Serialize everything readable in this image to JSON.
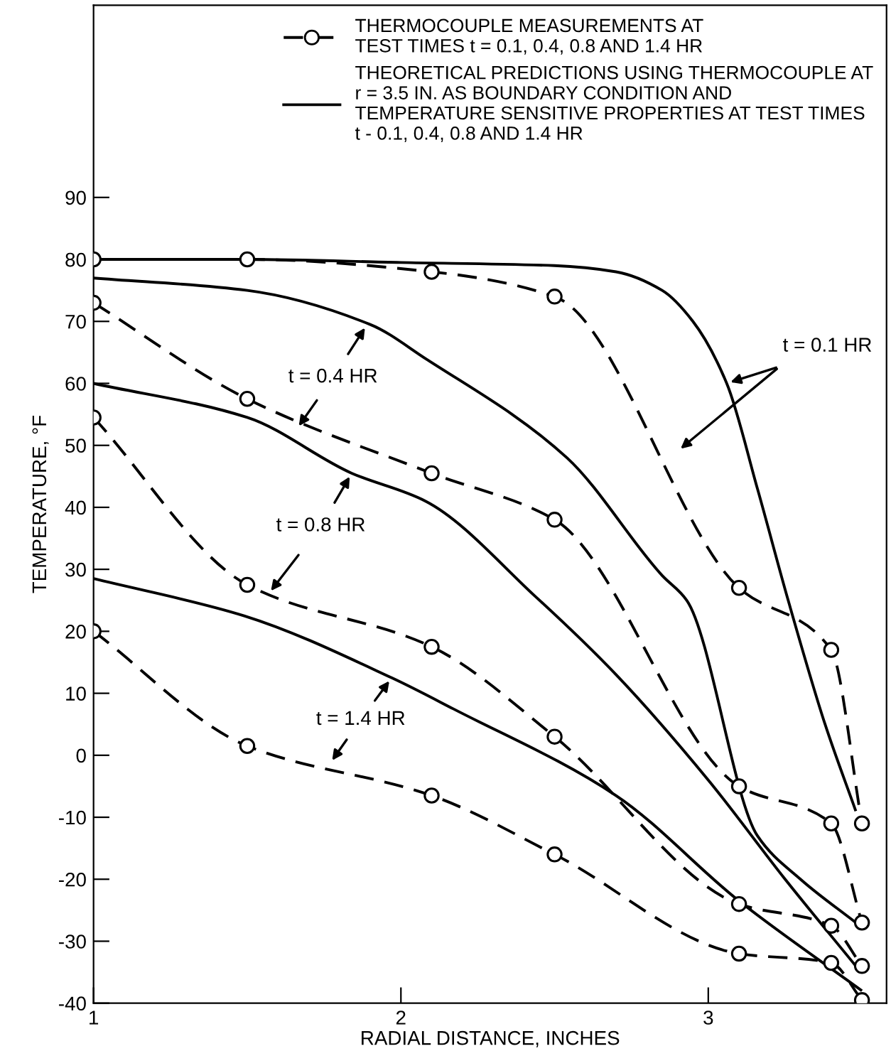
{
  "chart_data": {
    "type": "line",
    "xlabel": "RADIAL DISTANCE, INCHES",
    "ylabel": "TEMPERATURE, °F",
    "xlim": [
      1,
      3.58
    ],
    "xticks": [
      1,
      2,
      3
    ],
    "ylim": [
      -40,
      121
    ],
    "yticks": [
      -40,
      -30,
      -20,
      -10,
      0,
      10,
      20,
      30,
      40,
      50,
      60,
      70,
      80,
      90
    ],
    "grid": false,
    "legend": "top right",
    "series": [
      {
        "name": "THERMOCOUPLE MEASUREMENTS AT\nTEST TIMES t = 0.1, 0.4, 0.8 AND 1.4 HR",
        "color": "#000000",
        "marker": "circle",
        "line_style": "dashed",
        "x": [
          1,
          1.5,
          2.1,
          2.5,
          3.1,
          3.4,
          3.5
        ],
        "values": [
          80,
          80,
          78,
          74,
          27,
          17,
          -11
        ]
      },
      {
        "color": "#000000",
        "marker": "circle",
        "line_style": "dashed",
        "x": [
          1,
          1.5,
          2.1,
          2.5,
          3.1,
          3.4,
          3.5
        ],
        "values": [
          73,
          57.5,
          45.5,
          38,
          -5,
          -11,
          -27
        ]
      },
      {
        "color": "#000000",
        "marker": "circle",
        "line_style": "dashed",
        "x": [
          1,
          1.5,
          2.1,
          2.5,
          3.1,
          3.4,
          3.5
        ],
        "values": [
          54.5,
          27.5,
          17.5,
          3,
          -24,
          -27.5,
          -34
        ]
      },
      {
        "color": "#000000",
        "marker": "circle",
        "line_style": "dashed",
        "x": [
          1,
          1.5,
          2.1,
          2.5,
          3.1,
          3.4,
          3.5
        ],
        "values": [
          20,
          1.5,
          -6.5,
          -16,
          -32,
          -33.5,
          -39.5
        ]
      },
      {
        "name": "THEORETICAL PREDICTIONS USING THERMOCOUPLE AT\nr = 3.5 IN. AS BOUNDARY CONDITION AND\nTEMPERATURE SENSITIVE PROPERTIES AT TEST TIMES\nt - 0.1, 0.4, 0.8 AND 1.4 HR",
        "color": "#000000",
        "marker": "none",
        "line_style": "solid",
        "x": [
          1,
          1.5,
          2,
          2.5,
          2.7,
          2.85,
          2.95,
          3.06,
          3.16,
          3.26,
          3.38,
          3.48
        ],
        "values": [
          80,
          80,
          79.5,
          79,
          78,
          75,
          70,
          60,
          43,
          25,
          5,
          -9
        ]
      },
      {
        "color": "#000000",
        "marker": "none",
        "line_style": "solid",
        "x": [
          1,
          1.5,
          1.9,
          2.08,
          2.54,
          2.85,
          2.93,
          3.16,
          3.3,
          3.48
        ],
        "values": [
          77,
          75,
          69.5,
          64,
          48,
          29,
          25,
          -13,
          -20,
          -27
        ]
      },
      {
        "color": "#000000",
        "marker": "none",
        "line_style": "solid",
        "x": [
          1,
          1.5,
          1.84,
          2.08,
          2.44,
          2.7,
          3.0,
          3.25,
          3.48
        ],
        "values": [
          60,
          54.5,
          45.5,
          41,
          25.5,
          13,
          -4,
          -20,
          -34
        ]
      },
      {
        "color": "#000000",
        "marker": "none",
        "line_style": "solid",
        "x": [
          1,
          1.49,
          1.97,
          2.17,
          2.7,
          3.1,
          3.5
        ],
        "values": [
          28.5,
          22.5,
          12.5,
          7.5,
          -6.5,
          -23.5,
          -38
        ]
      }
    ],
    "annotations": [
      {
        "text": "t = 0.1 HR",
        "x": 3.06,
        "y": 60
      },
      {
        "text": "t = 0.4 HR",
        "x": 1.89,
        "y": 69.5
      },
      {
        "text": "t = 0.8 HR",
        "x": 1.84,
        "y": 45.5
      },
      {
        "text": "t = 1.4 HR",
        "x": 1.97,
        "y": 12.5
      }
    ]
  }
}
